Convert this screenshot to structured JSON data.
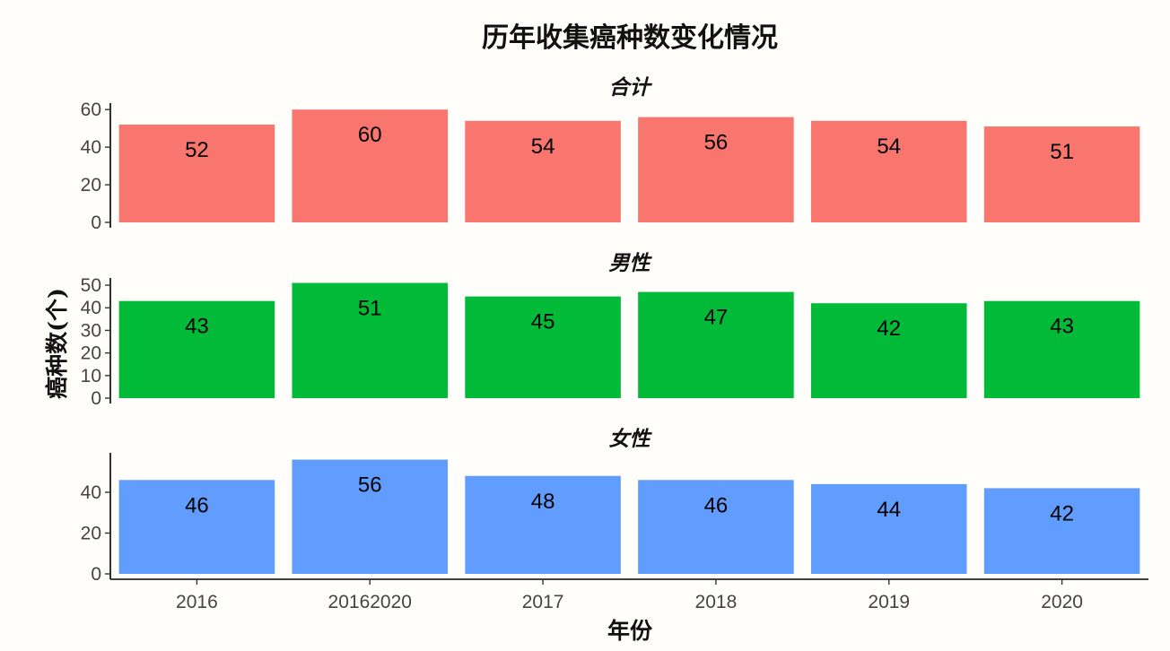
{
  "chart_data": {
    "type": "bar",
    "title": "历年收集癌种数变化情况",
    "xlabel": "年份",
    "ylabel": "癌种数(个)",
    "categories": [
      "2016",
      "20162020",
      "2017",
      "2018",
      "2019",
      "2020"
    ],
    "grid": false,
    "facets": [
      {
        "name": "合计",
        "color": "#F8766D",
        "values": [
          52,
          60,
          54,
          56,
          54,
          51
        ],
        "ylim": [
          0,
          62
        ],
        "yticks": [
          0,
          20,
          40,
          60
        ]
      },
      {
        "name": "男性",
        "color": "#00BA38",
        "values": [
          43,
          51,
          45,
          47,
          42,
          43
        ],
        "ylim": [
          0,
          52
        ],
        "yticks": [
          0,
          10,
          20,
          30,
          40,
          50
        ]
      },
      {
        "name": "女性",
        "color": "#619CFF",
        "values": [
          46,
          56,
          48,
          46,
          44,
          42
        ],
        "ylim": [
          0,
          58
        ],
        "yticks": [
          0,
          20,
          40
        ]
      }
    ]
  }
}
